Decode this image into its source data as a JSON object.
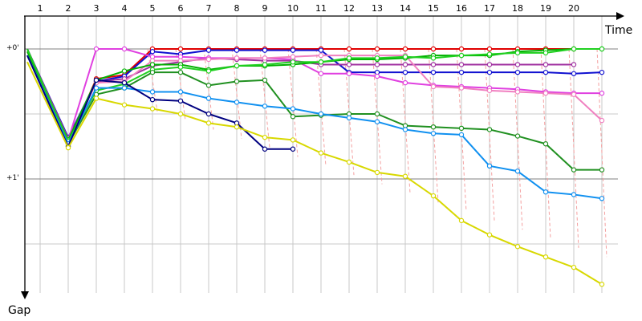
{
  "chart_data": {
    "type": "line",
    "xlabel": "Time",
    "ylabel": "Gap",
    "x_ticks": [
      "1",
      "2",
      "3",
      "4",
      "5",
      "6",
      "7",
      "8",
      "9",
      "10",
      "11",
      "12",
      "13",
      "14",
      "15",
      "16",
      "17",
      "18",
      "19",
      "20"
    ],
    "y_ticks": [
      "+0'",
      "+1'"
    ],
    "ylim": [
      0,
      1.9
    ],
    "grid": true,
    "colors": {
      "grid_major": "#808080",
      "grid_minor": "#c8c8c8",
      "axis": "#000000",
      "connector": "#f4a0a0",
      "point_fill": "#ffffff"
    },
    "series": [
      {
        "color": "#e00000",
        "values": [
          0.0,
          0.72,
          0.23,
          0.2,
          0.0,
          0.0,
          0.0,
          0.0,
          0.0,
          0.0,
          0.0,
          0.0,
          0.0,
          0.0,
          0.0,
          0.0,
          0.0,
          0.0,
          0.0,
          0.0
        ]
      },
      {
        "color": "#1010d0",
        "values": [
          0.0,
          0.68,
          0.25,
          0.21,
          0.02,
          0.04,
          0.01,
          0.01,
          0.01,
          0.01,
          0.01,
          0.18,
          0.18,
          0.18,
          0.18,
          0.18,
          0.18,
          0.18,
          0.18,
          0.19,
          0.18
        ]
      },
      {
        "color": "#a030a0",
        "values": [
          0.0,
          0.69,
          0.25,
          0.23,
          0.13,
          0.1,
          0.07,
          0.08,
          0.09,
          0.09,
          0.12,
          0.12,
          0.12,
          0.12,
          0.12,
          0.12,
          0.12,
          0.12,
          0.12,
          0.12
        ]
      },
      {
        "color": "#e040e0",
        "values": [
          0.02,
          0.7,
          0.0,
          0.0,
          0.06,
          0.06,
          0.07,
          0.07,
          0.07,
          0.08,
          0.19,
          0.19,
          0.21,
          0.26,
          0.28,
          0.29,
          0.3,
          0.31,
          0.33,
          0.34,
          0.34
        ]
      },
      {
        "color": "#f080c0",
        "values": [
          0.02,
          0.7,
          0.26,
          0.25,
          0.09,
          0.09,
          0.08,
          0.07,
          0.07,
          0.06,
          0.05,
          0.05,
          0.05,
          0.05,
          0.29,
          0.3,
          0.32,
          0.33,
          0.34,
          0.35,
          0.55
        ]
      },
      {
        "color": "#00b000",
        "values": [
          0.02,
          0.7,
          0.24,
          0.17,
          0.12,
          0.12,
          0.16,
          0.13,
          0.13,
          0.12,
          0.1,
          0.08,
          0.08,
          0.07,
          0.05,
          0.05,
          0.05,
          0.02,
          0.01,
          0.0,
          0.0
        ]
      },
      {
        "color": "#20d020",
        "values": [
          0.0,
          0.71,
          0.32,
          0.27,
          0.16,
          0.14,
          0.17,
          0.13,
          0.12,
          0.1,
          0.1,
          0.07,
          0.07,
          0.06,
          0.07,
          0.05,
          0.04,
          0.03,
          0.03,
          0.0,
          0.0
        ]
      },
      {
        "color": "#209020",
        "values": [
          0.05,
          0.73,
          0.35,
          0.3,
          0.18,
          0.18,
          0.28,
          0.25,
          0.24,
          0.52,
          0.51,
          0.5,
          0.5,
          0.59,
          0.6,
          0.61,
          0.62,
          0.67,
          0.73,
          0.93,
          0.93
        ]
      },
      {
        "color": "#1090f0",
        "values": [
          0.05,
          0.73,
          0.3,
          0.3,
          0.33,
          0.33,
          0.38,
          0.41,
          0.44,
          0.46,
          0.5,
          0.53,
          0.56,
          0.62,
          0.65,
          0.66,
          0.9,
          0.94,
          1.1,
          1.12,
          1.15
        ]
      },
      {
        "color": "#000080",
        "values": [
          0.05,
          0.75,
          0.24,
          0.26,
          0.39,
          0.4,
          0.5,
          0.57,
          0.77,
          0.77
        ]
      },
      {
        "color": "#d8d800",
        "values": [
          0.1,
          0.76,
          0.38,
          0.43,
          0.46,
          0.5,
          0.57,
          0.6,
          0.68,
          0.7,
          0.8,
          0.87,
          0.95,
          0.98,
          1.13,
          1.32,
          1.43,
          1.52,
          1.6,
          1.68,
          1.81
        ]
      }
    ]
  }
}
